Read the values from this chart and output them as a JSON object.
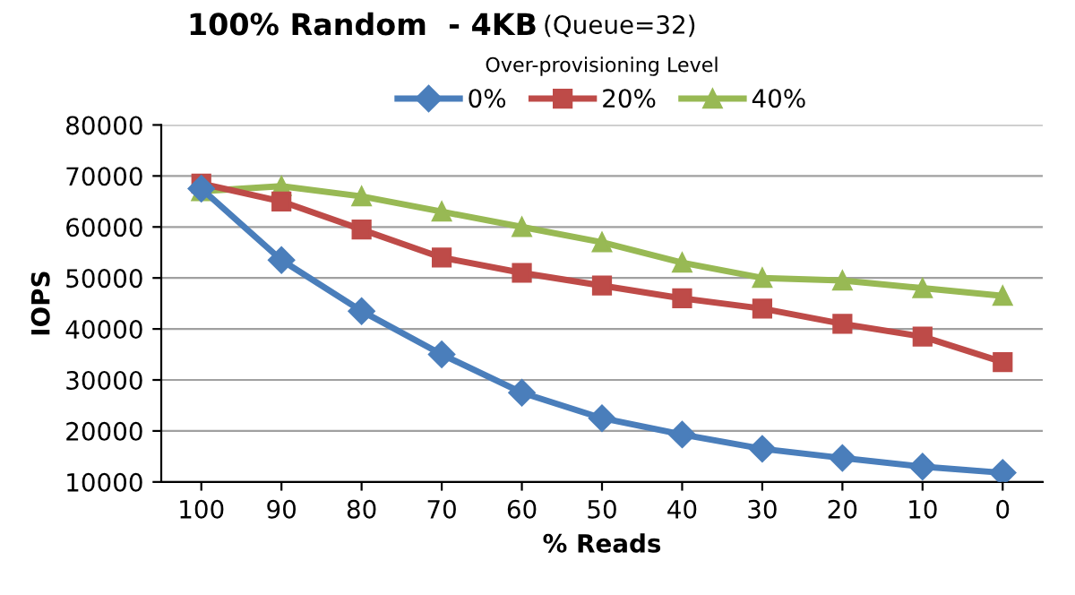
{
  "chart_data": {
    "type": "line",
    "title": "100% Random  - 4KB",
    "subtitle": "(Queue=32)",
    "legend_title": "Over-provisioning Level",
    "xlabel": "% Reads",
    "ylabel": "IOPS",
    "categories": [
      "100",
      "90",
      "80",
      "70",
      "60",
      "50",
      "40",
      "30",
      "20",
      "10",
      "0"
    ],
    "series": [
      {
        "name": "0%",
        "color": "#4a7ebb",
        "marker": "diamond",
        "values": [
          67500,
          53500,
          43500,
          35000,
          27500,
          22500,
          19300,
          16500,
          14700,
          13000,
          11800
        ]
      },
      {
        "name": "20%",
        "color": "#be4b48",
        "marker": "square",
        "values": [
          68500,
          65000,
          59500,
          54000,
          51000,
          48500,
          46000,
          44000,
          41000,
          38500,
          33500
        ]
      },
      {
        "name": "40%",
        "color": "#98b954",
        "marker": "triangle",
        "values": [
          67000,
          68000,
          66000,
          63000,
          60000,
          57000,
          53000,
          50000,
          49500,
          48000,
          46500
        ]
      }
    ],
    "ylim": [
      10000,
      80000
    ],
    "yticks": [
      10000,
      20000,
      30000,
      40000,
      50000,
      60000,
      70000,
      80000
    ],
    "grid": "y",
    "legend": "top",
    "line_style": "solid"
  }
}
